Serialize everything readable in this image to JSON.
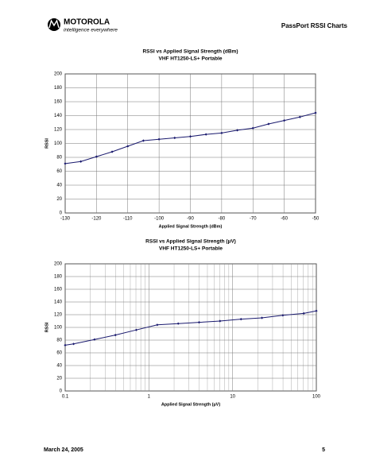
{
  "header": {
    "brand": "MOTOROLA",
    "tagline": "intelligence everywhere",
    "title": "PassPort RSSI Charts"
  },
  "chart_data": [
    {
      "type": "line",
      "title": "RSSI vs Applied Signal Strength (dBm)",
      "subtitle": "VHF HT1250-LS+ Portable",
      "x_label": "Applied Signal Strength (dBm)",
      "y_label": "RSSI",
      "x": [
        -130,
        -125,
        -120,
        -115,
        -110,
        -105,
        -100,
        -95,
        -90,
        -85,
        -80,
        -75,
        -70,
        -65,
        -60,
        -55,
        -50
      ],
      "values": [
        71,
        74,
        81,
        88,
        96,
        104,
        106,
        108,
        110,
        113,
        115,
        119,
        122,
        128,
        133,
        138,
        144
      ],
      "color": "#1a1a6e",
      "xlim": [
        -130,
        -50
      ],
      "xticks": [
        -130,
        -120,
        -110,
        -100,
        -90,
        -80,
        -70,
        -60,
        -50
      ],
      "ylim": [
        0,
        200
      ],
      "yticks": [
        0,
        20,
        40,
        60,
        80,
        100,
        120,
        140,
        160,
        180,
        200
      ],
      "grid": true
    },
    {
      "type": "line",
      "title": "RSSI vs Applied Signal Strength (µV)",
      "subtitle": "VHF HT1250-LS+ Portable",
      "x_label": "Applied Signal Strength (µV)",
      "y_label": "RSSI",
      "x": [
        0.1,
        0.126,
        0.224,
        0.398,
        0.707,
        1.26,
        2.24,
        3.98,
        7.07,
        12.6,
        22.4,
        39.8,
        70.7,
        100
      ],
      "values": [
        72,
        74,
        81,
        88,
        96,
        104,
        106,
        108,
        110,
        113,
        115,
        119,
        122,
        126
      ],
      "color": "#1a1a6e",
      "x_scale": "log",
      "minor_grid": true,
      "xlim": [
        0.1,
        100
      ],
      "xticks": [
        0.1,
        1,
        10,
        100
      ],
      "ylim": [
        0,
        200
      ],
      "yticks": [
        0,
        20,
        40,
        60,
        80,
        100,
        120,
        140,
        160,
        180,
        200
      ],
      "grid": true
    }
  ],
  "footer": {
    "date": "March 24, 2005",
    "page": "5"
  }
}
